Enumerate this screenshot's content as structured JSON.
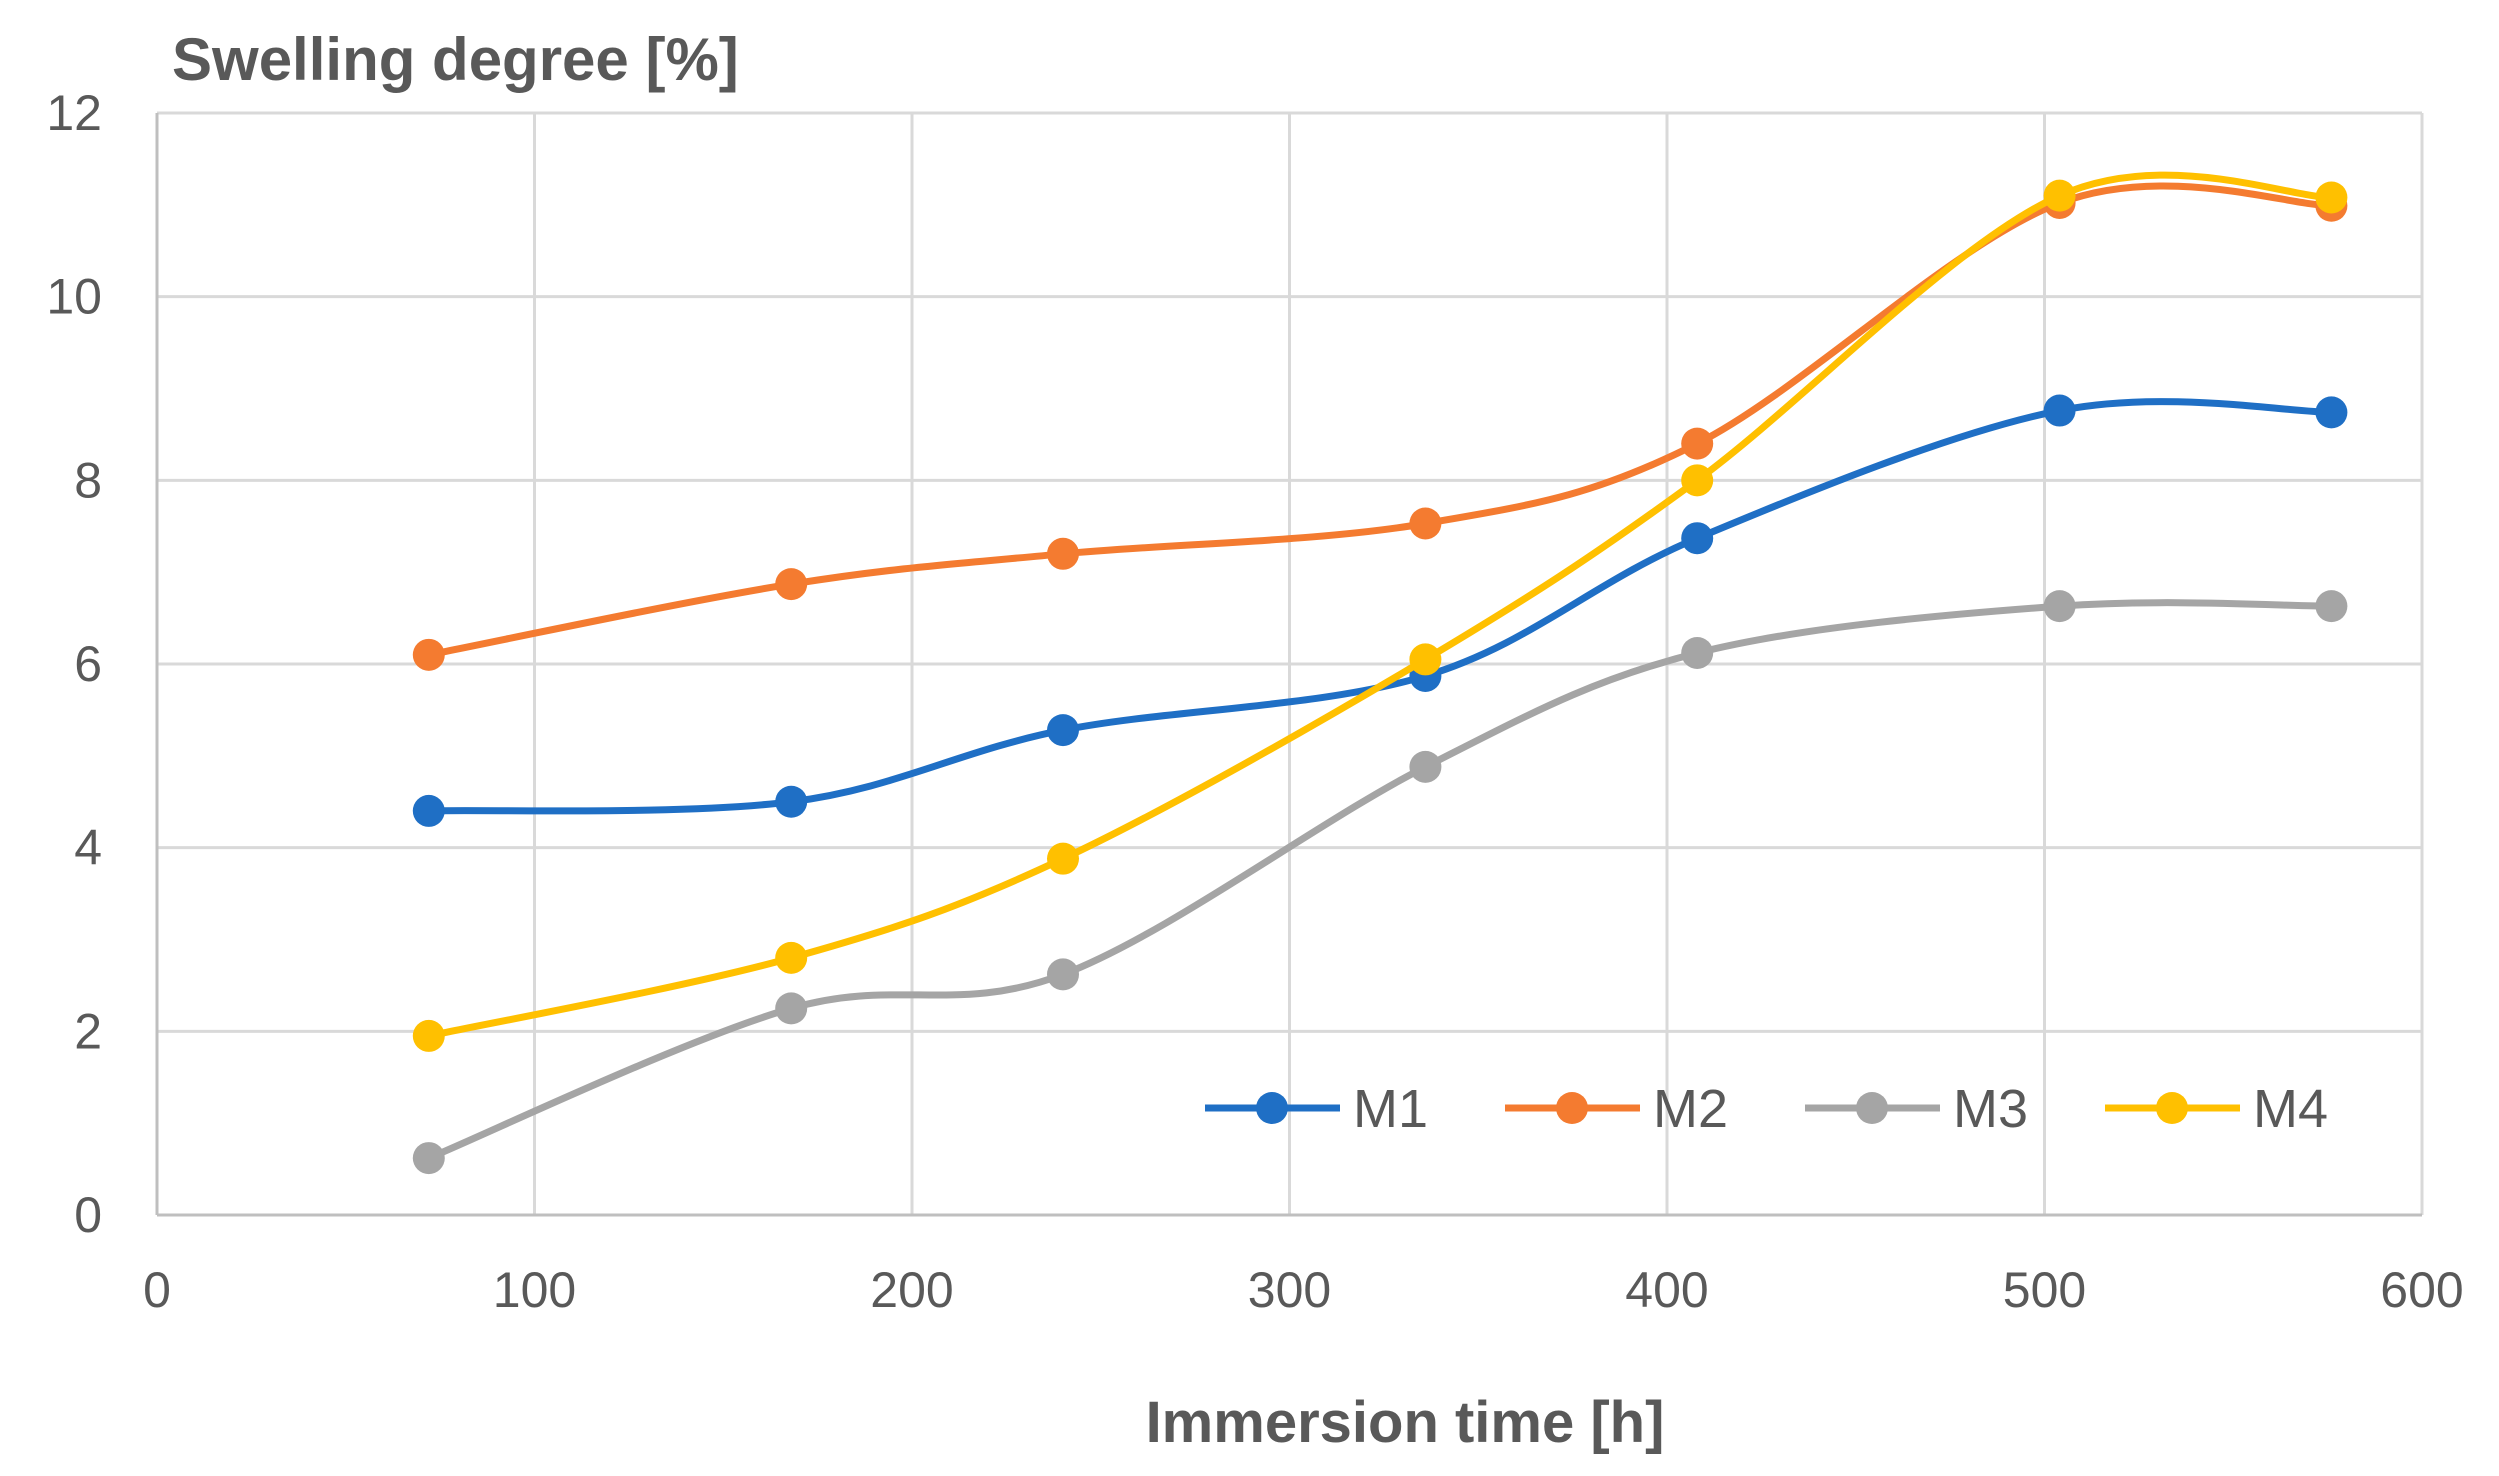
{
  "chart_data": {
    "type": "line",
    "ylabel": "Swelling degree [%]",
    "xlabel": "Immersion time [h]",
    "xlim": [
      0,
      600
    ],
    "ylim": [
      0,
      12
    ],
    "xticks": [
      0,
      100,
      200,
      300,
      400,
      500,
      600
    ],
    "yticks": [
      0,
      2,
      4,
      6,
      8,
      10,
      12
    ],
    "x": [
      72,
      168,
      240,
      336,
      408,
      504,
      576
    ],
    "grid": true,
    "smooth": true,
    "legend": "bottom-right inside",
    "series": [
      {
        "name": "M1",
        "color": "#1f6fc5",
        "values": [
          4.4,
          4.5,
          5.28,
          5.87,
          7.37,
          8.76,
          8.74
        ]
      },
      {
        "name": "M2",
        "color": "#f47b30",
        "values": [
          6.1,
          6.87,
          7.2,
          7.53,
          8.4,
          11.02,
          10.99
        ]
      },
      {
        "name": "M3",
        "color": "#a5a5a5",
        "values": [
          0.62,
          2.25,
          2.62,
          4.88,
          6.12,
          6.63,
          6.63
        ]
      },
      {
        "name": "M4",
        "color": "#ffc000",
        "values": [
          1.95,
          2.8,
          3.88,
          6.05,
          8.0,
          11.1,
          11.08
        ]
      }
    ]
  }
}
